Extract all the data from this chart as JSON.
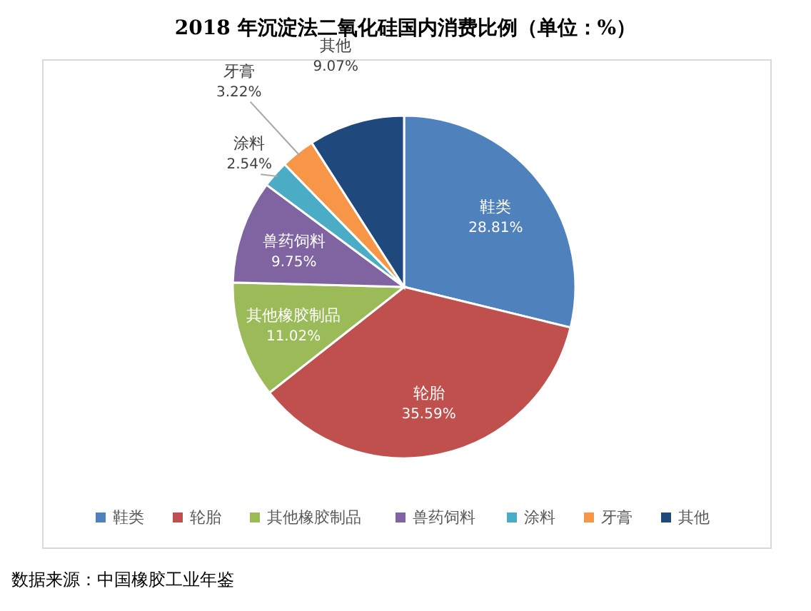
{
  "chart_data": {
    "type": "pie",
    "title": "2018 年沉淀法二氧化硅国内消费比例（单位：%）",
    "categories": [
      "鞋类",
      "轮胎",
      "其他橡胶制品",
      "兽药饲料",
      "涂料",
      "牙膏",
      "其他"
    ],
    "values": [
      28.81,
      35.59,
      11.02,
      9.75,
      2.54,
      3.22,
      9.07
    ],
    "colors": [
      "#4f81bd",
      "#c0504d",
      "#9bbb59",
      "#8064a2",
      "#4bacc6",
      "#f79646",
      "#1f497d"
    ],
    "value_labels": [
      "28.81%",
      "35.59%",
      "11.02%",
      "9.75%",
      "2.54%",
      "3.22%",
      "9.07%"
    ],
    "legend": "bottom",
    "annotations": [
      "数据来源：中国橡胶工业年鉴"
    ]
  }
}
